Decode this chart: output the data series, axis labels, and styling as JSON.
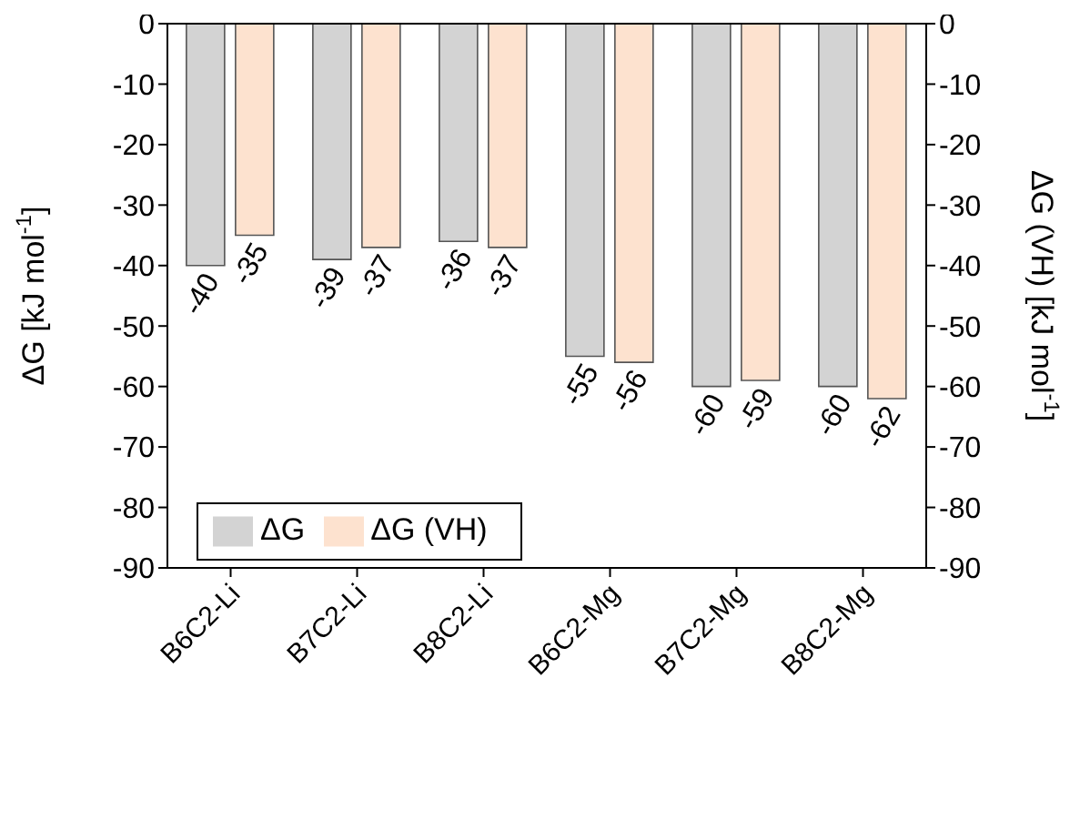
{
  "chart_data": {
    "type": "bar",
    "ylabel": "ΔG [kJ mol$^{-1}$]",
    "y2label": "ΔG (VH) [kJ mol$^{-1}$]",
    "categories": [
      "B6C2-Li",
      "B7C2-Li",
      "B8C2-Li",
      "B6C2-Mg",
      "B7C2-Mg",
      "B8C2-Mg"
    ],
    "series": [
      {
        "name": "ΔG",
        "color": "#d3d3d3",
        "values": [
          -40,
          -39,
          -36,
          -55,
          -60,
          -60
        ]
      },
      {
        "name": "ΔG (VH)",
        "color": "#fde2cf",
        "values": [
          -35,
          -37,
          -37,
          -56,
          -59,
          -62
        ]
      }
    ],
    "ylim": [
      -90,
      0
    ],
    "yticks": [
      -90,
      -80,
      -70,
      -60,
      -50,
      -40,
      -30,
      -20,
      -10,
      0
    ],
    "y2lim": [
      -90,
      0
    ],
    "y2ticks": [
      -90,
      -80,
      -70,
      -60,
      -50,
      -40,
      -30,
      -20,
      -10,
      0
    ],
    "data_labels": true,
    "legend": "bottom left",
    "grid": false
  }
}
